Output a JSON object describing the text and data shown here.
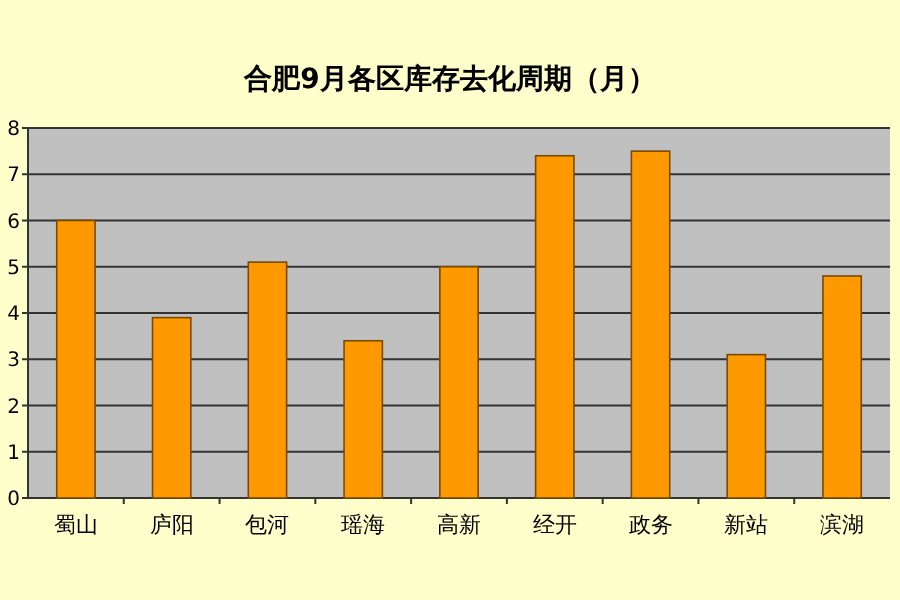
{
  "chart_data": {
    "type": "bar",
    "title": "合肥9月各区库存去化周期（月）",
    "categories": [
      "蜀山",
      "庐阳",
      "包河",
      "瑶海",
      "高新",
      "经开",
      "政务",
      "新站",
      "滨湖"
    ],
    "values": [
      6.0,
      3.9,
      5.1,
      3.4,
      5.0,
      7.4,
      7.5,
      3.1,
      4.8
    ],
    "color": "#ff9900",
    "ylim": [
      0,
      8
    ],
    "yticks": [
      0,
      1,
      2,
      3,
      4,
      5,
      6,
      7,
      8
    ],
    "grid": "y"
  }
}
